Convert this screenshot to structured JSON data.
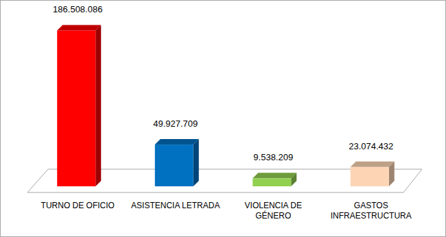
{
  "chart_data": {
    "type": "bar",
    "categories": [
      "TURNO DE OFICIO",
      "ASISTENCIA LETRADA",
      "VIOLENCIA DE\nGÉNERO",
      "GASTOS\nINFRAESTRUCTURA"
    ],
    "values": [
      186508086,
      49927709,
      9538209,
      23074432
    ],
    "value_labels": [
      "186.508.086",
      "49.927.709",
      "9.538.209",
      "23.074.432"
    ],
    "colors": [
      "#ff0000",
      "#0070c0",
      "#92d050",
      "#fdd5b4"
    ],
    "ylim": [
      0,
      200000000
    ],
    "data_labels": true,
    "tick_labels": "x",
    "grid": false
  }
}
